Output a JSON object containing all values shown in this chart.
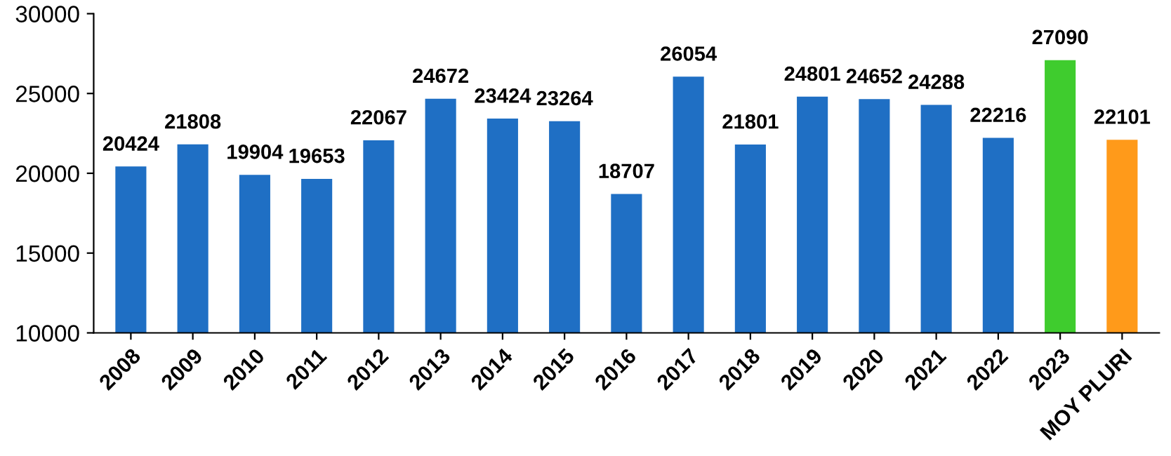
{
  "chart_data": {
    "type": "bar",
    "categories": [
      "2008",
      "2009",
      "2010",
      "2011",
      "2012",
      "2013",
      "2014",
      "2015",
      "2016",
      "2017",
      "2018",
      "2019",
      "2020",
      "2021",
      "2022",
      "2023",
      "MOY PLURI"
    ],
    "values": [
      20424,
      21808,
      19904,
      19653,
      22067,
      24672,
      23424,
      23264,
      18707,
      26054,
      21801,
      24801,
      24652,
      24288,
      22216,
      27090,
      22101
    ],
    "colors": [
      "#1f6fc4",
      "#1f6fc4",
      "#1f6fc4",
      "#1f6fc4",
      "#1f6fc4",
      "#1f6fc4",
      "#1f6fc4",
      "#1f6fc4",
      "#1f6fc4",
      "#1f6fc4",
      "#1f6fc4",
      "#1f6fc4",
      "#1f6fc4",
      "#1f6fc4",
      "#1f6fc4",
      "#3fcc2e",
      "#ff9a1a"
    ],
    "ylim": [
      10000,
      30000
    ],
    "yticks": [
      10000,
      15000,
      20000,
      25000,
      30000
    ],
    "grid": false,
    "data_labels": true
  }
}
